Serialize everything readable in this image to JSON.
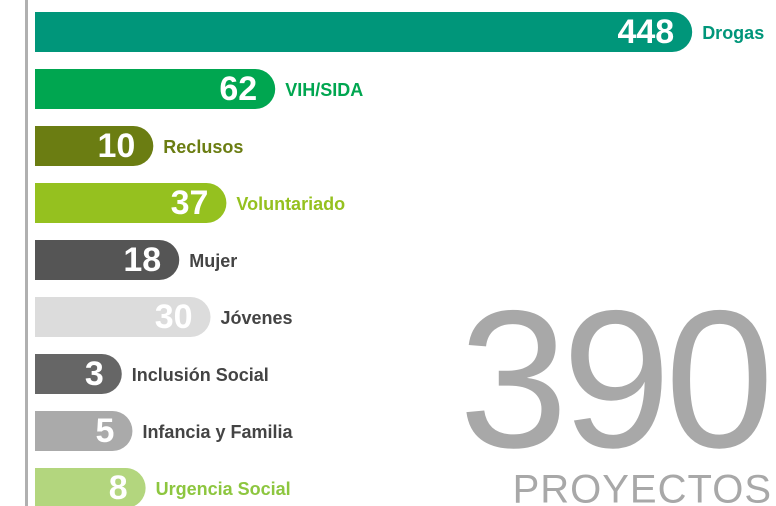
{
  "chart_data": {
    "type": "bar",
    "categories": [
      "Drogas",
      "VIH/SIDA",
      "Reclusos",
      "Voluntariado",
      "Mujer",
      "Jóvenes",
      "Inclusión Social",
      "Infancia y Familia",
      "Urgencia Social"
    ],
    "values": [
      448,
      62,
      10,
      37,
      18,
      30,
      3,
      5,
      8
    ],
    "colors": [
      "#00967a",
      "#00a650",
      "#6b7d12",
      "#95c11f",
      "#555555",
      "#dcdcdc",
      "#666666",
      "#aaaaaa",
      "#b3d67e"
    ],
    "label_colors": [
      "#00967a",
      "#00a650",
      "#6b7d12",
      "#95c11f",
      "#444444",
      "#444444",
      "#444444",
      "#444444",
      "#8dc63f"
    ],
    "total": 390,
    "total_label": "PROYECTOS"
  }
}
